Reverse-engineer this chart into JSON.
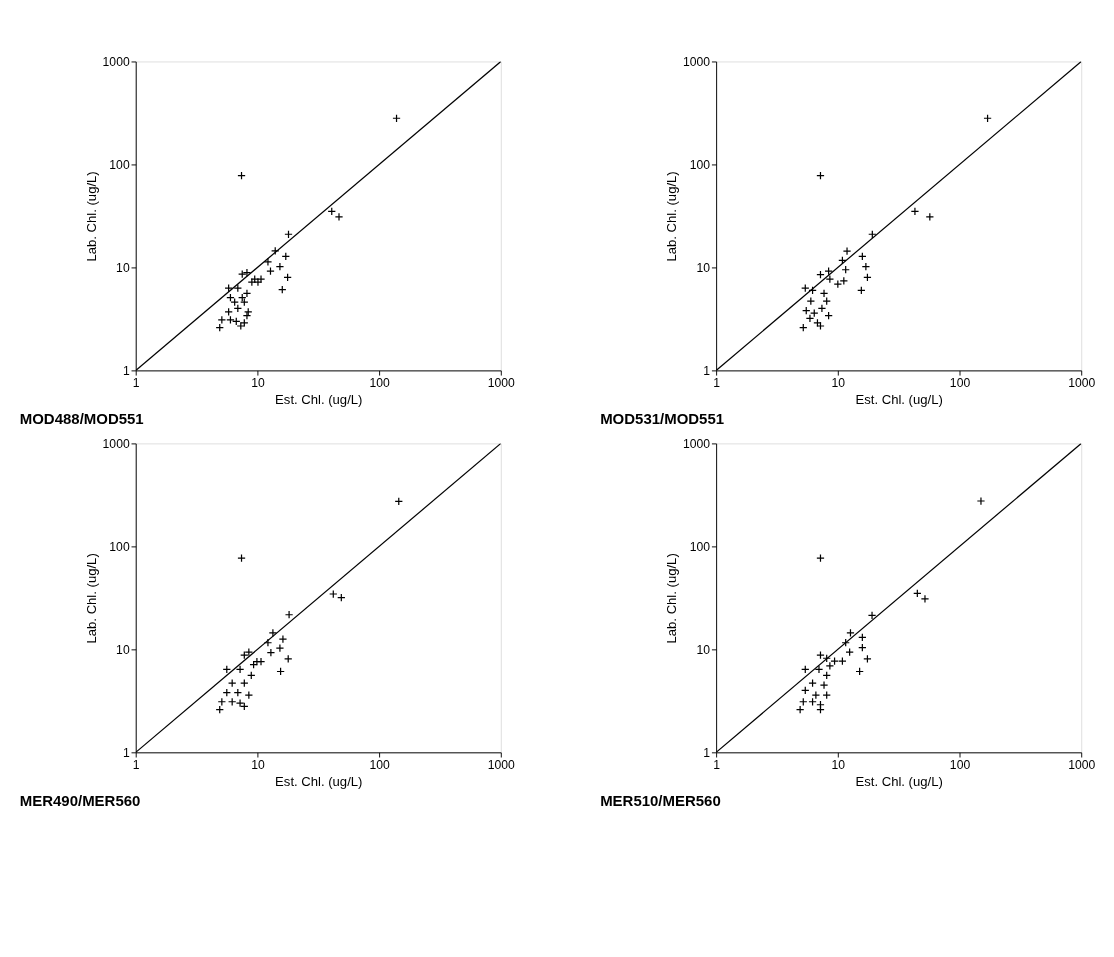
{
  "chart_data": [
    {
      "type": "scatter",
      "title": "MOD488/MOD551",
      "xlabel": "Est. Chl. (ug/L)",
      "ylabel": "Lab. Chl. (ug/L)",
      "log": "xy",
      "xlim": [
        1,
        1000
      ],
      "ylim": [
        1,
        1000
      ],
      "xticks": [
        1,
        10,
        100,
        1000
      ],
      "yticks": [
        1,
        10,
        100,
        1000
      ],
      "grid": false,
      "series": [
        {
          "marker": "cross",
          "color": "#000000",
          "x": [
            18,
            14.0,
            17.1,
            12.2,
            15.3,
            12.8,
            17.7,
            16,
            7.5,
            8.2,
            9.5,
            10.1,
            9.0,
            10.7,
            5.8,
            6.9,
            8.2,
            6.5,
            7.8,
            5.8,
            8.4,
            6.9,
            5.1,
            6.0,
            6.7,
            7.8,
            4.9,
            7.3,
            8.2,
            6.0,
            7.5,
            7.4,
            139,
            40.8,
            46.8
          ],
          "values": [
            21,
            14.5,
            12.8,
            11.3,
            10.2,
            9.2,
            8.0,
            6.1,
            8.6,
            8.9,
            7.7,
            7.2,
            7.2,
            7.7,
            6.3,
            6.3,
            5.6,
            4.6,
            4.6,
            3.7,
            3.7,
            4.0,
            3.1,
            3.1,
            3.0,
            2.9,
            2.6,
            2.7,
            3.4,
            5.1,
            5.1,
            78,
            281,
            35,
            31
          ]
        },
        {
          "type": "line",
          "color": "#000000",
          "x": [
            1,
            1000
          ],
          "values": [
            1,
            1000
          ]
        }
      ]
    },
    {
      "type": "scatter",
      "title": "MOD531/MOD551",
      "xlabel": "Est. Chl. (ug/L)",
      "ylabel": "Lab. Chl. (ug/L)",
      "log": "xy",
      "xlim": [
        1,
        1000
      ],
      "ylim": [
        1,
        1000
      ],
      "xticks": [
        1,
        10,
        100,
        1000
      ],
      "yticks": [
        1,
        10,
        100,
        1000
      ],
      "grid": false,
      "series": [
        {
          "marker": "cross",
          "color": "#000000",
          "x": [
            19.2,
            11.9,
            15.9,
            10.9,
            17.0,
            11.6,
            17.5,
            15.6,
            7.2,
            8.4,
            8.6,
            10.0,
            11.2,
            5.4,
            6.2,
            7.7,
            6.0,
            8.1,
            5.5,
            7.4,
            8.4,
            5.9,
            6.8,
            5.2,
            7.2,
            6.4,
            7.2,
            170,
            43,
            57
          ],
          "values": [
            21,
            14.4,
            12.8,
            11.7,
            10.2,
            9.5,
            8.0,
            6.0,
            8.5,
            9.2,
            7.7,
            6.9,
            7.4,
            6.3,
            6.0,
            5.6,
            4.7,
            4.7,
            3.8,
            4.0,
            3.4,
            3.2,
            2.9,
            2.6,
            2.7,
            3.6,
            78,
            281,
            35,
            31
          ]
        },
        {
          "type": "line",
          "color": "#000000",
          "x": [
            1,
            1000
          ],
          "values": [
            1,
            1000
          ]
        }
      ]
    },
    {
      "type": "scatter",
      "title": "MER490/MER560",
      "xlabel": "Est. Chl. (ug/L)",
      "ylabel": "Lab. Chl. (ug/L)",
      "log": "xy",
      "xlim": [
        1,
        1000
      ],
      "ylim": [
        1,
        1000
      ],
      "xticks": [
        1,
        10,
        100,
        1000
      ],
      "yticks": [
        1,
        10,
        100,
        1000
      ],
      "grid": false,
      "series": [
        {
          "marker": "cross",
          "color": "#000000",
          "x": [
            18.2,
            13.4,
            16.2,
            12.2,
            15.3,
            12.9,
            17.9,
            15.5,
            7.8,
            8.5,
            9.9,
            10.7,
            9.3,
            5.6,
            7.2,
            8.9,
            6.2,
            7.8,
            5.6,
            8.5,
            6.9,
            5.1,
            6.2,
            7.2,
            7.8,
            4.9,
            7.4,
            145,
            42,
            48.9
          ],
          "values": [
            21.7,
            14.5,
            12.6,
            11.6,
            10.3,
            9.3,
            8.1,
            6.1,
            8.8,
            9.4,
            7.6,
            7.6,
            7.1,
            6.4,
            6.4,
            5.6,
            4.7,
            4.7,
            3.8,
            3.6,
            3.8,
            3.1,
            3.1,
            3.0,
            2.8,
            2.6,
            77,
            274,
            34.5,
            31.8
          ]
        },
        {
          "type": "line",
          "color": "#000000",
          "x": [
            1,
            1000
          ],
          "values": [
            1,
            1000
          ]
        }
      ]
    },
    {
      "type": "scatter",
      "title": "MER510/MER560",
      "xlabel": "Est. Chl. (ug/L)",
      "ylabel": "Lab. Chl. (ug/L)",
      "log": "xy",
      "xlim": [
        1,
        1000
      ],
      "ylim": [
        1,
        1000
      ],
      "xticks": [
        1,
        10,
        100,
        1000
      ],
      "yticks": [
        1,
        10,
        100,
        1000
      ],
      "grid": false,
      "series": [
        {
          "marker": "cross",
          "color": "#000000",
          "x": [
            19.1,
            12.7,
            15.9,
            11.6,
            15.9,
            12.5,
            17.5,
            15.1,
            7.2,
            8.1,
            9.4,
            10.9,
            8.6,
            5.4,
            7.0,
            8.1,
            6.2,
            7.7,
            5.4,
            8.1,
            6.6,
            5.2,
            6.2,
            7.2,
            4.9,
            7.2,
            7.2,
            150,
            45,
            52
          ],
          "values": [
            21.4,
            14.5,
            13.1,
            11.6,
            10.4,
            9.4,
            8.1,
            6.1,
            8.8,
            8.2,
            7.7,
            7.7,
            6.9,
            6.4,
            6.4,
            5.6,
            4.7,
            4.5,
            4.0,
            3.6,
            3.6,
            3.1,
            3.1,
            2.9,
            2.6,
            2.6,
            77,
            276,
            35,
            31
          ]
        },
        {
          "type": "line",
          "color": "#000000",
          "x": [
            1,
            1000
          ],
          "values": [
            1,
            1000
          ]
        }
      ]
    }
  ]
}
